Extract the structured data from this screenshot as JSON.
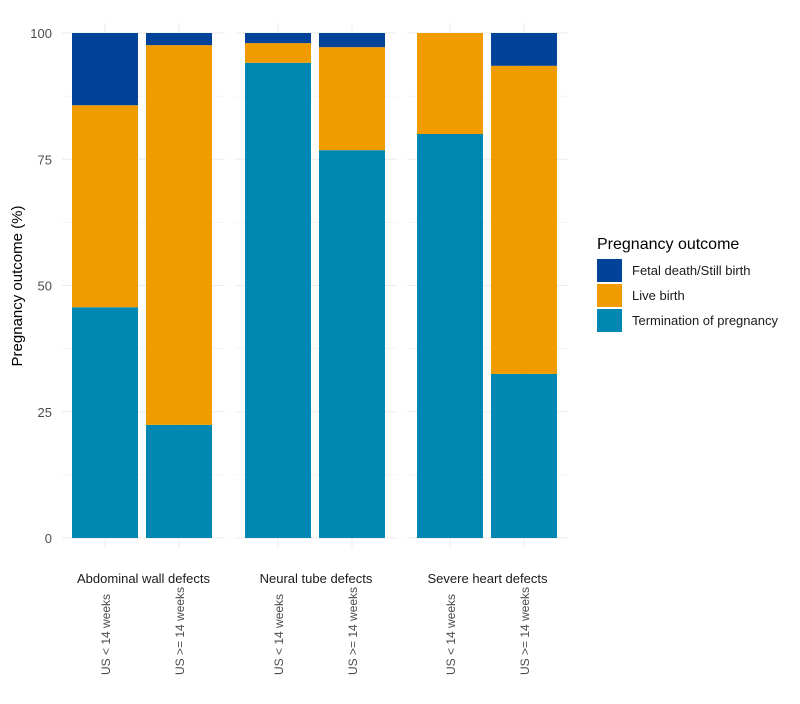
{
  "chart_data": {
    "type": "bar",
    "stacked": true,
    "ylabel": "Pregnancy outcome (%)",
    "xlabel": "",
    "ylim": [
      0,
      100
    ],
    "yticks": [
      0,
      25,
      50,
      75,
      100
    ],
    "grid": true,
    "legend": {
      "title": "Pregnancy outcome",
      "placement": "right"
    },
    "facets": [
      {
        "label": "Abdominal wall defects",
        "categories": [
          "US < 14 weeks",
          "US >= 14 weeks"
        ]
      },
      {
        "label": "Neural tube defects",
        "categories": [
          "US < 14 weeks",
          "US >= 14 weeks"
        ]
      },
      {
        "label": "Severe heart defects",
        "categories": [
          "US < 14 weeks",
          "US >= 14 weeks"
        ]
      }
    ],
    "series": [
      {
        "name": "Termination of pregnancy",
        "color": "#0088b3",
        "values": [
          45.7,
          22.4,
          94.1,
          76.8,
          80.0,
          32.5
        ]
      },
      {
        "name": "Live birth",
        "color": "#f09b00",
        "values": [
          40.0,
          75.2,
          3.9,
          20.4,
          20.0,
          61.0
        ]
      },
      {
        "name": "Fetal death/Still birth",
        "color": "#004398",
        "values": [
          14.3,
          2.4,
          2.0,
          2.8,
          0.0,
          6.5
        ]
      }
    ],
    "legend_order": [
      "Fetal death/Still birth",
      "Live birth",
      "Termination of pregnancy"
    ]
  }
}
